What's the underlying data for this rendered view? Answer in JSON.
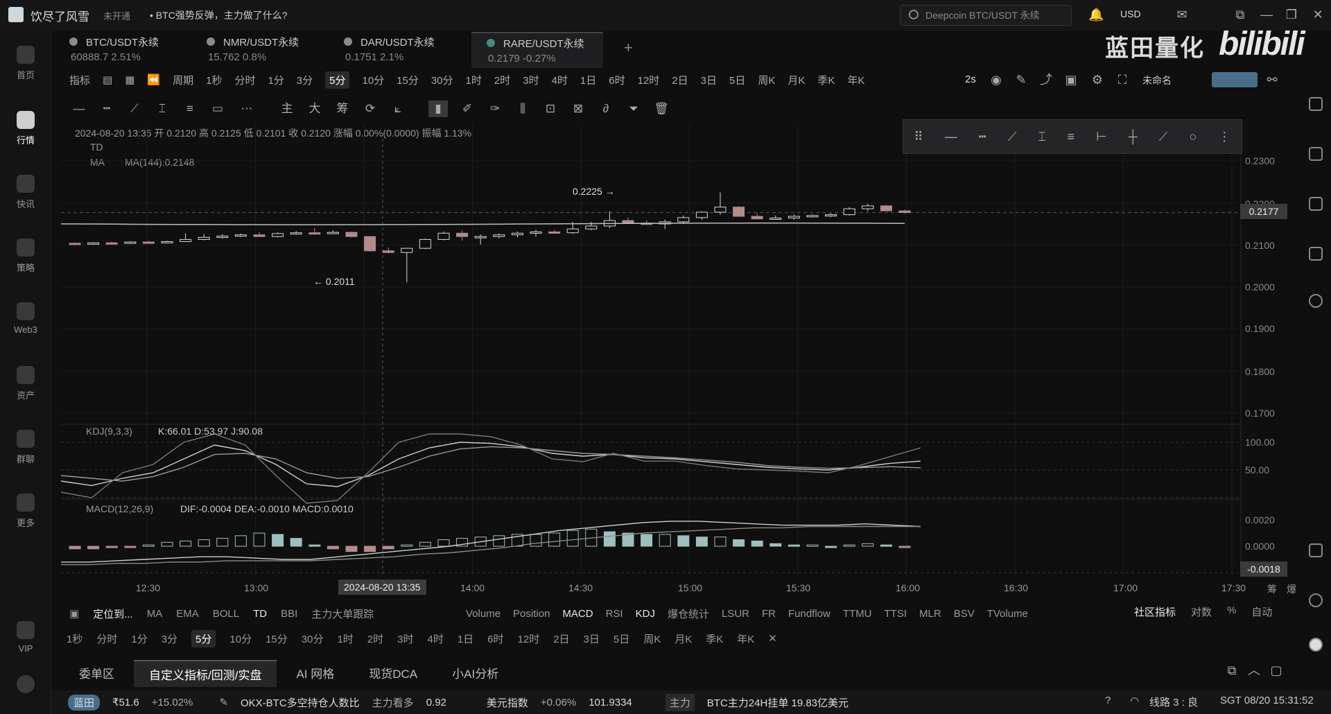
{
  "app": {
    "title": "饮尽了风雪",
    "pill": "未开通",
    "news": "• BTC强势反弹，主力做了什么?",
    "search_placeholder": "Deepcoin BTC/USDT 永续",
    "currency": "USD",
    "watermark_cn": "蓝田量化",
    "watermark_bili": "bilibili"
  },
  "sidebar": {
    "items": [
      {
        "label": "首页"
      },
      {
        "label": "行情"
      },
      {
        "label": "快讯"
      },
      {
        "label": "策略"
      },
      {
        "label": "Web3"
      },
      {
        "label": "资产"
      },
      {
        "label": "群聊"
      },
      {
        "label": "更多"
      },
      {
        "label": "VIP"
      }
    ]
  },
  "tickers": [
    {
      "symbol": "BTC/USDT永续",
      "price": "60888.7  2.51%"
    },
    {
      "symbol": "NMR/USDT永续",
      "price": "15.762  0.8%"
    },
    {
      "symbol": "DAR/USDT永续",
      "price": "0.1751  2.1%"
    },
    {
      "symbol": "RARE/USDT永续",
      "price": "0.2179  -0.27%"
    }
  ],
  "toolbar": {
    "indicator": "指标",
    "period": "周期",
    "timeframes": [
      "1秒",
      "分时",
      "1分",
      "3分",
      "5分",
      "10分",
      "15分",
      "30分",
      "1时",
      "2时",
      "3时",
      "4时",
      "1日",
      "6时",
      "12时",
      "2日",
      "3日",
      "5日",
      "周K",
      "月K",
      "季K",
      "年K"
    ],
    "selected_tf": "5分",
    "refresh": "2s",
    "unnamed": "未命名"
  },
  "chart": {
    "ohlc_line": "2024-08-20 13:35  开 0.2120  高 0.2125  低 0.2101  收 0.2120  涨幅 0.00%(0.0000)  振幅 1.13%",
    "td_label": "TD",
    "ma_label": "MA",
    "ma_value": "MA(144):0.2148",
    "high_marker": "0.2225 →",
    "low_marker": "← 0.2011",
    "price_tag": "0.2177",
    "y_labels": [
      "0.2300",
      "0.2200",
      "0.2100",
      "0.2000",
      "0.1900",
      "0.1800",
      "0.1700"
    ],
    "kdj_label": "KDJ(9,3,3)",
    "kdj_values": "K:66.01  D:53.97  J:90.08",
    "kdj_y": [
      "100.00",
      "50.00"
    ],
    "macd_label": "MACD(12,26,9)",
    "macd_values": "DIF:-0.0004  DEA:-0.0010  MACD:0.0010",
    "macd_y": [
      "0.0020",
      "0.0000"
    ],
    "macd_tag": "-0.0018",
    "x_labels": [
      "12:30",
      "13:00",
      "14:00",
      "14:30",
      "15:00",
      "15:30",
      "16:00",
      "16:30",
      "17:00",
      "17:30"
    ],
    "x_selected": "2024-08-20 13:35",
    "chip": "筹",
    "burst": "爆"
  },
  "indicators": {
    "locate": "定位到...",
    "main": [
      "MA",
      "EMA",
      "BOLL",
      "TD",
      "BBI",
      "主力大单跟踪"
    ],
    "sub": [
      "Volume",
      "Position",
      "MACD",
      "RSI",
      "KDJ",
      "爆仓统计",
      "LSUR",
      "FR",
      "Fundflow",
      "TTMU",
      "TTSI",
      "MLR",
      "BSV",
      "TVolume"
    ],
    "right": [
      "社区指标",
      "对数",
      "%",
      "自动"
    ]
  },
  "tf_row2": [
    "1秒",
    "分时",
    "1分",
    "3分",
    "5分",
    "10分",
    "15分",
    "30分",
    "1时",
    "2时",
    "3时",
    "4时",
    "1日",
    "6时",
    "12时",
    "2日",
    "3日",
    "5日",
    "周K",
    "月K",
    "季K",
    "年K"
  ],
  "bottom_tabs": [
    "委单区",
    "自定义指标/回测/实盘",
    "AI 网格",
    "现货DCA",
    "小AI分析"
  ],
  "status": {
    "tag": "蓝田",
    "price": "₹51.6",
    "change": "+15.02%",
    "okx": "OKX-BTC多空持仓人数比",
    "okx_sub": "主力看多",
    "okx_val": "0.92",
    "usd_idx": "美元指数",
    "usd_chg": "+0.06%",
    "usd_val": "101.9334",
    "main": "主力",
    "btc_main": "BTC主力24H挂单 19.83亿美元",
    "route": "线路 3 : 良",
    "time": "SGT  08/20 15:31:52"
  },
  "candles": [
    [
      0.2104,
      0.2106,
      0.2102,
      0.2103
    ],
    [
      0.2103,
      0.2106,
      0.2101,
      0.2105
    ],
    [
      0.2105,
      0.2108,
      0.2103,
      0.2104
    ],
    [
      0.2104,
      0.2109,
      0.2102,
      0.2107
    ],
    [
      0.2107,
      0.211,
      0.2103,
      0.2105
    ],
    [
      0.2105,
      0.211,
      0.2104,
      0.2108
    ],
    [
      0.2108,
      0.2128,
      0.2107,
      0.2113
    ],
    [
      0.2113,
      0.2126,
      0.2111,
      0.2118
    ],
    [
      0.2118,
      0.2126,
      0.2115,
      0.2121
    ],
    [
      0.2121,
      0.2127,
      0.2119,
      0.2124
    ],
    [
      0.2124,
      0.213,
      0.2119,
      0.212
    ],
    [
      0.212,
      0.213,
      0.2118,
      0.2127
    ],
    [
      0.2127,
      0.2133,
      0.2124,
      0.2129
    ],
    [
      0.2129,
      0.214,
      0.2126,
      0.2128
    ],
    [
      0.2128,
      0.2135,
      0.2126,
      0.213
    ],
    [
      0.213,
      0.2132,
      0.2118,
      0.212
    ],
    [
      0.212,
      0.2121,
      0.2084,
      0.2086
    ],
    [
      0.2086,
      0.2094,
      0.208,
      0.2082
    ],
    [
      0.2082,
      0.2093,
      0.2011,
      0.2092
    ],
    [
      0.2092,
      0.2115,
      0.209,
      0.2113
    ],
    [
      0.2113,
      0.2132,
      0.2111,
      0.2128
    ],
    [
      0.2128,
      0.2135,
      0.211,
      0.212
    ],
    [
      0.212,
      0.2125,
      0.2101,
      0.212
    ],
    [
      0.212,
      0.2127,
      0.2116,
      0.2124
    ],
    [
      0.2124,
      0.2132,
      0.2118,
      0.2128
    ],
    [
      0.2128,
      0.2136,
      0.212,
      0.2131
    ],
    [
      0.2131,
      0.2136,
      0.2126,
      0.2129
    ],
    [
      0.2129,
      0.2155,
      0.2126,
      0.2138
    ],
    [
      0.2138,
      0.2155,
      0.2135,
      0.2145
    ],
    [
      0.2145,
      0.218,
      0.214,
      0.2158
    ],
    [
      0.2158,
      0.2165,
      0.215,
      0.2152
    ],
    [
      0.2152,
      0.2158,
      0.2148,
      0.215
    ],
    [
      0.215,
      0.216,
      0.2138,
      0.2155
    ],
    [
      0.2155,
      0.217,
      0.215,
      0.2165
    ],
    [
      0.2165,
      0.218,
      0.216,
      0.2178
    ],
    [
      0.2178,
      0.2225,
      0.2172,
      0.219
    ],
    [
      0.219,
      0.2192,
      0.217,
      0.2168
    ],
    [
      0.2168,
      0.2175,
      0.2163,
      0.2162
    ],
    [
      0.2162,
      0.217,
      0.216,
      0.2164
    ],
    [
      0.2164,
      0.2172,
      0.216,
      0.2168
    ],
    [
      0.2168,
      0.2172,
      0.2165,
      0.217
    ],
    [
      0.217,
      0.2175,
      0.2166,
      0.2172
    ],
    [
      0.2172,
      0.219,
      0.217,
      0.2186
    ],
    [
      0.2186,
      0.2198,
      0.218,
      0.2193
    ],
    [
      0.2193,
      0.2195,
      0.218,
      0.2181
    ],
    [
      0.2181,
      0.2184,
      0.2175,
      0.2177
    ]
  ]
}
